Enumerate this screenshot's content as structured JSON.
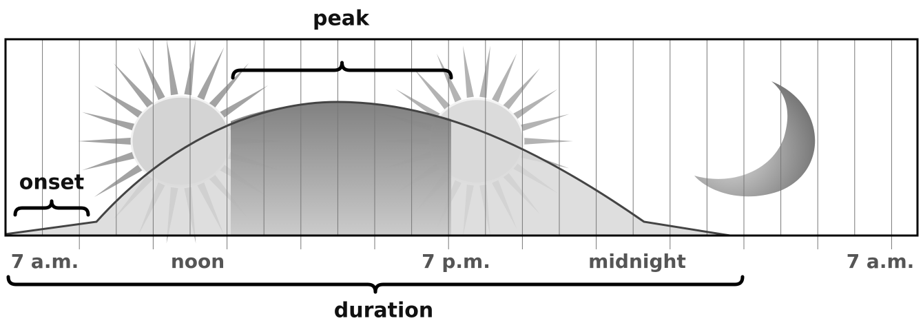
{
  "diagram": {
    "phases": [
      "onset",
      "peak",
      "duration"
    ],
    "time_labels": [
      "7 a.m.",
      "noon",
      "7 p.m.",
      "midnight",
      "7 a.m."
    ]
  }
}
